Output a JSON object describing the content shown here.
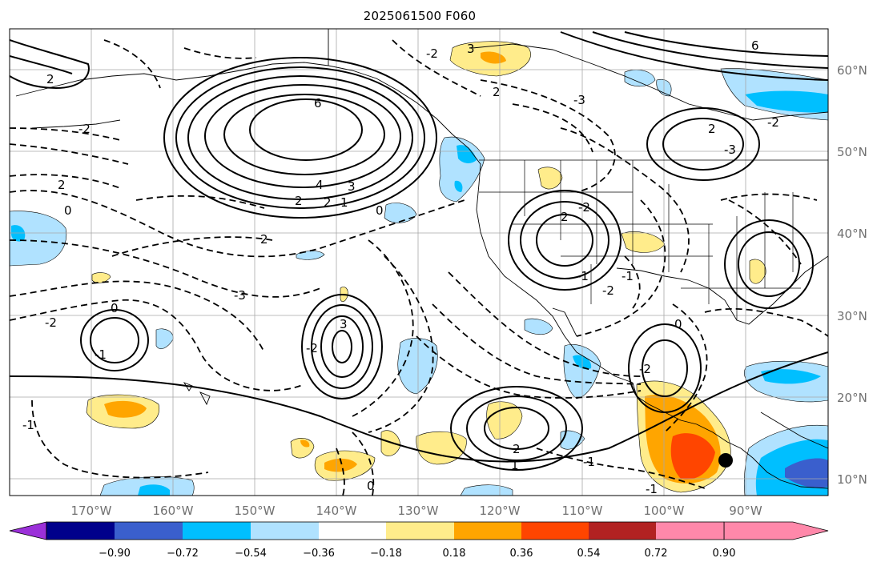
{
  "title": "2025061500 F060",
  "lon_labels": [
    "170°W",
    "160°W",
    "150°W",
    "140°W",
    "130°W",
    "120°W",
    "110°W",
    "100°W",
    "90°W"
  ],
  "lat_labels": [
    "10°N",
    "20°N",
    "30°N",
    "40°N",
    "50°N",
    "60°N"
  ],
  "colorbar": {
    "colors": [
      "#9b30d9",
      "#00008b",
      "#3a5fcd",
      "#00bfff",
      "#b0e2ff",
      "#ffffff",
      "#ffec8b",
      "#ffa500",
      "#ff4500",
      "#b22222",
      "#ff88aa"
    ],
    "tick_labels": [
      "−0.90",
      "−0.72",
      "−0.54",
      "−0.36",
      "−0.18",
      "0.18",
      "0.36",
      "0.54",
      "0.72",
      "0.90"
    ]
  },
  "contour_labels": [
    "3",
    "2",
    "6",
    "4",
    "3",
    "2",
    "2",
    "1",
    "0",
    "2",
    "2",
    "0",
    "-2",
    "-3",
    "0",
    "-1",
    "-2",
    "3",
    "-2",
    "0",
    "-1",
    "-1",
    "2",
    "1",
    "-1",
    "2",
    "-2",
    "-1",
    "0",
    "-2",
    "-2",
    "-1",
    "2",
    "-3",
    "-2",
    "6",
    "-3",
    "-2",
    "2"
  ],
  "marker_label": ""
}
